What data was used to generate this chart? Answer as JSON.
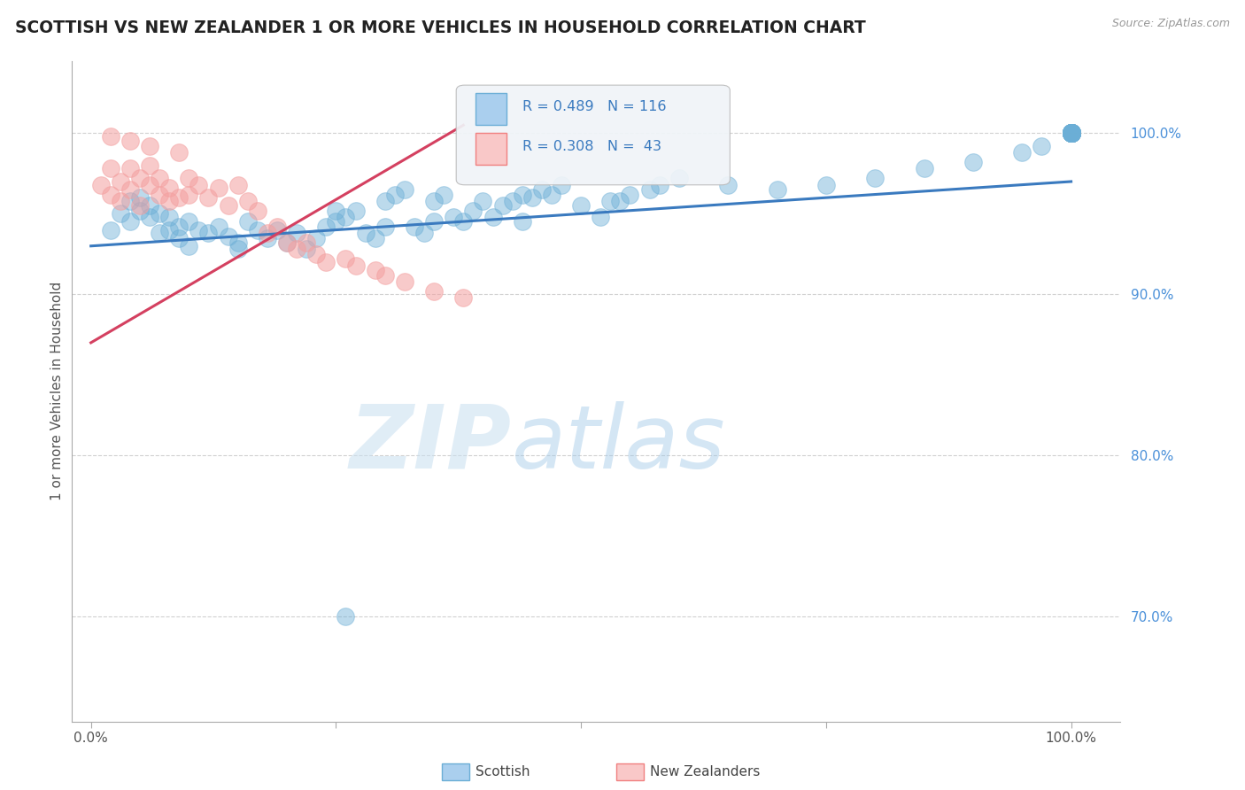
{
  "title": "SCOTTISH VS NEW ZEALANDER 1 OR MORE VEHICLES IN HOUSEHOLD CORRELATION CHART",
  "source": "Source: ZipAtlas.com",
  "ylabel": "1 or more Vehicles in Household",
  "xlim": [
    -0.02,
    1.05
  ],
  "ylim": [
    0.635,
    1.045
  ],
  "xtick_positions": [
    0.0,
    0.25,
    0.5,
    0.75,
    1.0
  ],
  "xticklabels": [
    "0.0%",
    "",
    "",
    "",
    "100.0%"
  ],
  "ytick_positions": [
    0.7,
    0.8,
    0.9,
    1.0
  ],
  "ytick_labels": [
    "70.0%",
    "80.0%",
    "90.0%",
    "100.0%"
  ],
  "legend_entries": [
    {
      "label": "Scottish",
      "color": "#6baed6",
      "r": "0.489",
      "n": "116"
    },
    {
      "label": "New Zealanders",
      "color": "#f4a0a0",
      "r": "0.308",
      "n": " 43"
    }
  ],
  "watermark_zip": "ZIP",
  "watermark_atlas": "atlas",
  "blue_color": "#6baed6",
  "pink_color": "#f4a0a0",
  "blue_line_color": "#3a7abf",
  "pink_line_color": "#d44060",
  "blue_trend_x": [
    0.0,
    1.0
  ],
  "blue_trend_y": [
    0.93,
    0.97
  ],
  "pink_trend_x": [
    0.0,
    0.38
  ],
  "pink_trend_y": [
    0.87,
    1.005
  ],
  "blue_scatter_x": [
    0.02,
    0.03,
    0.04,
    0.04,
    0.05,
    0.05,
    0.06,
    0.06,
    0.07,
    0.07,
    0.08,
    0.08,
    0.09,
    0.09,
    0.1,
    0.1,
    0.11,
    0.12,
    0.13,
    0.14,
    0.15,
    0.15,
    0.16,
    0.17,
    0.18,
    0.19,
    0.2,
    0.21,
    0.22,
    0.23,
    0.24,
    0.25,
    0.25,
    0.26,
    0.27,
    0.28,
    0.29,
    0.3,
    0.3,
    0.31,
    0.32,
    0.33,
    0.34,
    0.35,
    0.35,
    0.36,
    0.37,
    0.38,
    0.39,
    0.4,
    0.41,
    0.42,
    0.43,
    0.44,
    0.44,
    0.45,
    0.46,
    0.47,
    0.48,
    0.5,
    0.52,
    0.53,
    0.54,
    0.55,
    0.57,
    0.58,
    0.6,
    0.65,
    0.7,
    0.75,
    0.8,
    0.85,
    0.9,
    0.95,
    0.97,
    1.0,
    1.0,
    1.0,
    1.0,
    1.0,
    1.0,
    1.0,
    1.0,
    1.0,
    1.0,
    1.0,
    1.0,
    1.0,
    1.0,
    1.0,
    1.0,
    1.0,
    1.0,
    1.0,
    1.0,
    1.0,
    1.0,
    1.0,
    1.0,
    1.0,
    1.0,
    1.0,
    1.0,
    1.0,
    1.0,
    1.0,
    1.0,
    1.0,
    1.0,
    1.0,
    1.0,
    1.0,
    1.0,
    1.0,
    1.0,
    0.26
  ],
  "blue_scatter_y": [
    0.94,
    0.95,
    0.958,
    0.945,
    0.96,
    0.952,
    0.955,
    0.948,
    0.95,
    0.938,
    0.948,
    0.94,
    0.942,
    0.935,
    0.945,
    0.93,
    0.94,
    0.938,
    0.942,
    0.936,
    0.932,
    0.928,
    0.945,
    0.94,
    0.935,
    0.94,
    0.932,
    0.938,
    0.928,
    0.935,
    0.942,
    0.952,
    0.945,
    0.948,
    0.952,
    0.938,
    0.935,
    0.942,
    0.958,
    0.962,
    0.965,
    0.942,
    0.938,
    0.945,
    0.958,
    0.962,
    0.948,
    0.945,
    0.952,
    0.958,
    0.948,
    0.955,
    0.958,
    0.962,
    0.945,
    0.96,
    0.965,
    0.962,
    0.968,
    0.955,
    0.948,
    0.958,
    0.958,
    0.962,
    0.965,
    0.968,
    0.972,
    0.968,
    0.965,
    0.968,
    0.972,
    0.978,
    0.982,
    0.988,
    0.992,
    1.0,
    1.0,
    1.0,
    1.0,
    1.0,
    1.0,
    1.0,
    1.0,
    1.0,
    1.0,
    1.0,
    1.0,
    1.0,
    1.0,
    1.0,
    1.0,
    1.0,
    1.0,
    1.0,
    1.0,
    1.0,
    1.0,
    1.0,
    1.0,
    1.0,
    1.0,
    1.0,
    1.0,
    1.0,
    1.0,
    1.0,
    1.0,
    1.0,
    1.0,
    1.0,
    1.0,
    1.0,
    1.0,
    1.0,
    1.0,
    0.7
  ],
  "pink_scatter_x": [
    0.01,
    0.02,
    0.02,
    0.03,
    0.03,
    0.04,
    0.04,
    0.05,
    0.05,
    0.06,
    0.06,
    0.07,
    0.07,
    0.08,
    0.08,
    0.09,
    0.1,
    0.1,
    0.11,
    0.12,
    0.13,
    0.14,
    0.15,
    0.16,
    0.17,
    0.18,
    0.19,
    0.2,
    0.21,
    0.22,
    0.23,
    0.24,
    0.26,
    0.27,
    0.29,
    0.3,
    0.32,
    0.35,
    0.38,
    0.02,
    0.04,
    0.06,
    0.09
  ],
  "pink_scatter_y": [
    0.968,
    0.962,
    0.978,
    0.958,
    0.97,
    0.965,
    0.978,
    0.955,
    0.972,
    0.968,
    0.98,
    0.962,
    0.972,
    0.966,
    0.958,
    0.96,
    0.972,
    0.962,
    0.968,
    0.96,
    0.966,
    0.955,
    0.968,
    0.958,
    0.952,
    0.938,
    0.942,
    0.932,
    0.928,
    0.932,
    0.925,
    0.92,
    0.922,
    0.918,
    0.915,
    0.912,
    0.908,
    0.902,
    0.898,
    0.998,
    0.995,
    0.992,
    0.988
  ]
}
